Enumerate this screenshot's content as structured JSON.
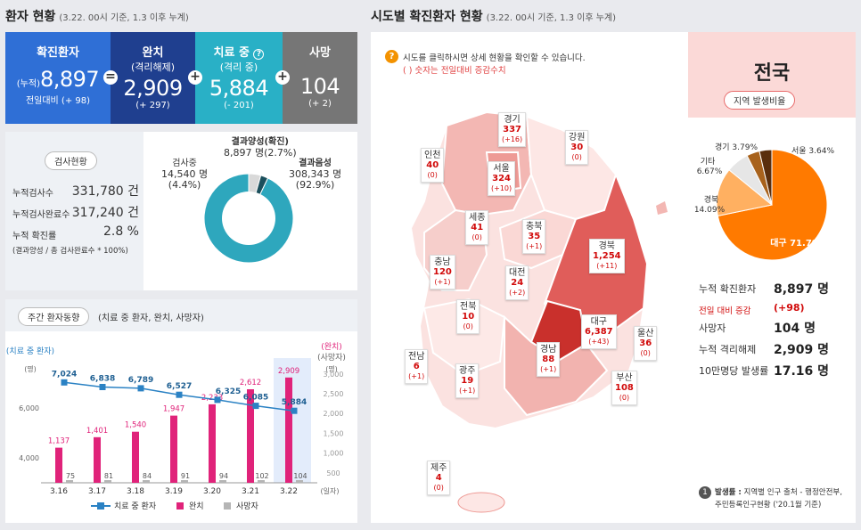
{
  "left": {
    "title": "환자 현황",
    "subtitle": "(3.22. 00시 기준, 1.3 이후 누계)",
    "stats": [
      {
        "label": "확진환자",
        "sub": "",
        "prefix": "(누적)",
        "value": "8,897",
        "change": "전일대비 (+ 98)",
        "color": "#2f6fd6"
      },
      {
        "label": "완치",
        "sub": "(격리해제)",
        "prefix": "",
        "value": "2,909",
        "change": "(+ 297)",
        "color": "#1f3f8f"
      },
      {
        "label": "치료 중",
        "sub": "(격리 중)",
        "prefix": "",
        "value": "5,884",
        "change": "(- 201)",
        "color": "#29b0c6"
      },
      {
        "label": "사망",
        "sub": "",
        "prefix": "",
        "value": "104",
        "change": "(+ 2)",
        "color": "#767676"
      }
    ],
    "ops": [
      "=",
      "+",
      "+"
    ],
    "test": {
      "title": "검사현황",
      "rows": [
        {
          "label": "누적검사수",
          "value": "331,780 건"
        },
        {
          "label": "누적검사완료수",
          "value": "317,240 건"
        },
        {
          "label": "누적 확진률",
          "value": "2.8 %"
        }
      ],
      "note": "(결과양성 / 총 검사완료수 * 100%)",
      "donut": {
        "testing_label": "검사중",
        "testing_value": "14,540 명",
        "testing_pct": "(4.4%)",
        "positive_label": "결과양성(확진)",
        "positive_value": "8,897 명(2.7%)",
        "negative_label": "결과음성",
        "negative_value": "308,343 명",
        "negative_pct": "(92.9%)",
        "fractions": [
          0.929,
          0.044,
          0.027
        ],
        "colors": [
          "#2ea7bd",
          "#d9d9d9",
          "#1b4f5c"
        ]
      }
    },
    "weekly": {
      "title": "주간 환자동향",
      "subtitle": "(치료 중 환자, 완치, 사망자)",
      "left_axis_title": "(치료 중 환자)",
      "left_axis_unit": "(명)",
      "right_axis_title": "(완치)",
      "right_axis_sub": "(사망자)",
      "right_axis_unit": "(명)",
      "x_unit": "(일자)",
      "legend": {
        "treating": "치료 중 환자",
        "recovered": "완치",
        "deaths": "사망자"
      }
    }
  },
  "chart_data": {
    "type": "bar",
    "categories": [
      "3.16",
      "3.17",
      "3.18",
      "3.19",
      "3.20",
      "3.21",
      "3.22"
    ],
    "series": [
      {
        "name": "치료 중 환자",
        "type": "line",
        "axis": "left",
        "color": "#2b82c4",
        "values": [
          7024,
          6838,
          6789,
          6527,
          6325,
          6085,
          5884
        ],
        "labels": [
          "7,024",
          "6,838",
          "6,789",
          "6,527",
          "6,325",
          "6,085",
          "5,884"
        ]
      },
      {
        "name": "완치",
        "type": "bar",
        "axis": "right",
        "color": "#e0237a",
        "values": [
          1137,
          1401,
          1540,
          1947,
          2233,
          2612,
          2909
        ],
        "labels": [
          "1,137",
          "1,401",
          "1,540",
          "1,947",
          "2,233",
          "2,612",
          "2,909"
        ]
      },
      {
        "name": "사망자",
        "type": "bar",
        "axis": "right",
        "color": "#b5b5b5",
        "values": [
          75,
          81,
          84,
          91,
          94,
          102,
          104
        ],
        "labels": [
          "75",
          "81",
          "84",
          "91",
          "94",
          "102",
          "104"
        ]
      }
    ],
    "left_ticks": [
      "4,000",
      "6,000"
    ],
    "left_ylim": [
      3000,
      8000
    ],
    "right_ticks": [
      "500",
      "1,000",
      "1,500",
      "2,000",
      "2,500",
      "3,000"
    ],
    "right_ylim": [
      250,
      3400
    ],
    "highlight_category": "3.22"
  },
  "right": {
    "title": "시도별 확진환자 현황",
    "subtitle": "(3.22. 00시 기준, 1.3 이후 누계)",
    "hint": "시도를 클릭하시면 상세 현황을 확인할 수 있습니다.",
    "hint_sub": "( ) 숫자는 전일대비 증감수치",
    "regions": [
      {
        "key": "gyeonggi",
        "name": "경기",
        "count": "337",
        "diff": "(+16)"
      },
      {
        "key": "gangwon",
        "name": "강원",
        "count": "30",
        "diff": "(0)"
      },
      {
        "key": "incheon",
        "name": "인천",
        "count": "40",
        "diff": "(0)"
      },
      {
        "key": "seoul",
        "name": "서울",
        "count": "324",
        "diff": "(+10)"
      },
      {
        "key": "sejong",
        "name": "세종",
        "count": "41",
        "diff": "(0)"
      },
      {
        "key": "chungbuk",
        "name": "충북",
        "count": "35",
        "diff": "(+1)"
      },
      {
        "key": "chungnam",
        "name": "충남",
        "count": "120",
        "diff": "(+1)"
      },
      {
        "key": "daejeon",
        "name": "대전",
        "count": "24",
        "diff": "(+2)"
      },
      {
        "key": "gyeongbuk",
        "name": "경북",
        "count": "1,254",
        "diff": "(+11)"
      },
      {
        "key": "jeonbuk",
        "name": "전북",
        "count": "10",
        "diff": "(0)"
      },
      {
        "key": "daegu",
        "name": "대구",
        "count": "6,387",
        "diff": "(+43)"
      },
      {
        "key": "ulsan",
        "name": "울산",
        "count": "36",
        "diff": "(0)"
      },
      {
        "key": "jeonnam",
        "name": "전남",
        "count": "6",
        "diff": "(+1)"
      },
      {
        "key": "gyeongnam",
        "name": "경남",
        "count": "88",
        "diff": "(+1)"
      },
      {
        "key": "gwangju",
        "name": "광주",
        "count": "19",
        "diff": "(+1)"
      },
      {
        "key": "busan",
        "name": "부산",
        "count": "108",
        "diff": "(0)"
      },
      {
        "key": "jeju",
        "name": "제주",
        "count": "4",
        "diff": "(0)"
      }
    ],
    "national": {
      "title": "전국",
      "button": "지역 발생비율",
      "pie": [
        {
          "label": "대구 71.79%",
          "value": 71.79,
          "color": "#ff7a00"
        },
        {
          "label": "경북 14.09%",
          "value": 14.09,
          "color": "#ffb061"
        },
        {
          "label": "기타 6.67%",
          "value": 6.67,
          "color": "#e6e6e6"
        },
        {
          "label": "경기 3.79%",
          "value": 3.79,
          "color": "#a8621c"
        },
        {
          "label": "서울 3.64%",
          "value": 3.64,
          "color": "#5a2e0c"
        }
      ],
      "stats": [
        {
          "label": "누적 확진환자",
          "value": "8,897 명",
          "red": false
        },
        {
          "label": "전일 대비 증감",
          "value": "(+98)",
          "red": true
        },
        {
          "label": "사망자",
          "value": "104 명",
          "red": false
        },
        {
          "label": "누적 격리해제",
          "value": "2,909 명",
          "red": false
        },
        {
          "label": "10만명당 발생률",
          "value": "17.16 명",
          "red": false
        }
      ],
      "note_badge": "1",
      "note_title": "발생률 :",
      "note_text": "지역별 인구 출처 - 행정안전부,",
      "note_text2": "주민등록인구현황 ('20.1월 기준)"
    }
  }
}
